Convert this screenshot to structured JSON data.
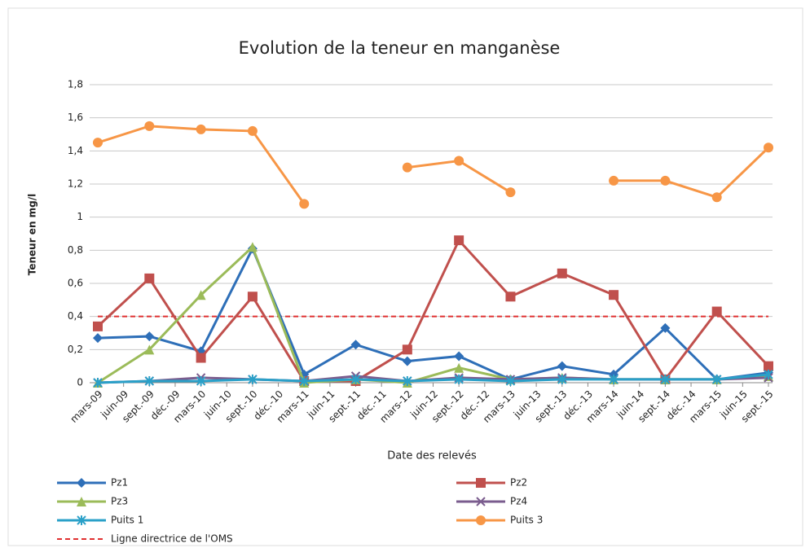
{
  "chart_data": {
    "type": "line",
    "title": "Evolution de la teneur en manganèse",
    "x_label": "Date des relevés",
    "y_label": "Teneur en mg/l",
    "xticks": [
      "mars-09",
      "juin-09",
      "sept.-09",
      "déc.-09",
      "mars-10",
      "juin-10",
      "sept.-10",
      "déc.-10",
      "mars-11",
      "juin-11",
      "sept.-11",
      "déc.-11",
      "mars-12",
      "juin-12",
      "sept.-12",
      "déc.-12",
      "mars-13",
      "juin-13",
      "sept.-13",
      "déc.-13",
      "mars-14",
      "juin-14",
      "sept.-14",
      "déc.-14",
      "mars-15",
      "juin-15",
      "sept.-15"
    ],
    "x": [
      "mars-09",
      "sept.-09",
      "mars-10",
      "sept.-10",
      "mars-11",
      "sept.-11",
      "mars-12",
      "sept.-12",
      "mars-13",
      "sept.-13",
      "mars-14",
      "sept.-14",
      "mars-15",
      "sept.-15"
    ],
    "series": [
      {
        "name": "Pz1",
        "color": "#2e6fb8",
        "marker": "diamond",
        "values": [
          0.27,
          0.28,
          0.19,
          0.81,
          0.05,
          0.23,
          0.13,
          0.16,
          0.02,
          0.1,
          0.05,
          0.33,
          0.02,
          0.06
        ]
      },
      {
        "name": "Pz2",
        "color": "#c0504d",
        "marker": "square",
        "values": [
          0.34,
          0.63,
          0.15,
          0.52,
          0.01,
          0.01,
          0.2,
          0.86,
          0.52,
          0.66,
          0.53,
          0.02,
          0.43,
          0.1
        ]
      },
      {
        "name": "Pz3",
        "color": "#9bbb59",
        "marker": "triangle",
        "values": [
          0,
          0.2,
          0.53,
          0.82,
          0,
          0.02,
          0,
          0.09,
          0.02,
          0.03,
          0.02,
          0.02,
          0.02,
          0.04
        ]
      },
      {
        "name": "Pz4",
        "color": "#7a5c8e",
        "marker": "x",
        "values": [
          0,
          0.01,
          0.03,
          0.02,
          0.01,
          0.04,
          0.01,
          0.03,
          0.02,
          0.03,
          0.02,
          0.02,
          0.02,
          0.03
        ]
      },
      {
        "name": "Puits 1",
        "color": "#2aa0c8",
        "marker": "star",
        "values": [
          0,
          0.01,
          0.01,
          0.02,
          0.01,
          0.02,
          0.01,
          0.02,
          0.01,
          0.02,
          0.02,
          0.02,
          0.02,
          0.05
        ]
      },
      {
        "name": "Puits 3",
        "color": "#f79646",
        "marker": "circle",
        "values": [
          1.45,
          1.55,
          1.53,
          1.52,
          1.08,
          null,
          1.3,
          1.34,
          1.15,
          null,
          1.22,
          1.22,
          1.12,
          1.42
        ]
      }
    ],
    "reference": {
      "name": "Ligne directrice de l'OMS",
      "value": 0.4,
      "color": "#e03030"
    },
    "ylim": [
      0,
      1.8
    ],
    "yticks": [
      0,
      {
        "value": 0.2,
        "label": "0,2"
      },
      {
        "value": 0.4,
        "label": "0,4"
      },
      {
        "value": 0.6,
        "label": "0,6"
      },
      {
        "value": 0.8,
        "label": "0,8"
      },
      1,
      {
        "value": 1.2,
        "label": "1,2"
      },
      {
        "value": 1.4,
        "label": "1,4"
      },
      {
        "value": 1.6,
        "label": "1,6"
      },
      {
        "value": 1.8,
        "label": "1,8"
      }
    ],
    "grid": true
  }
}
